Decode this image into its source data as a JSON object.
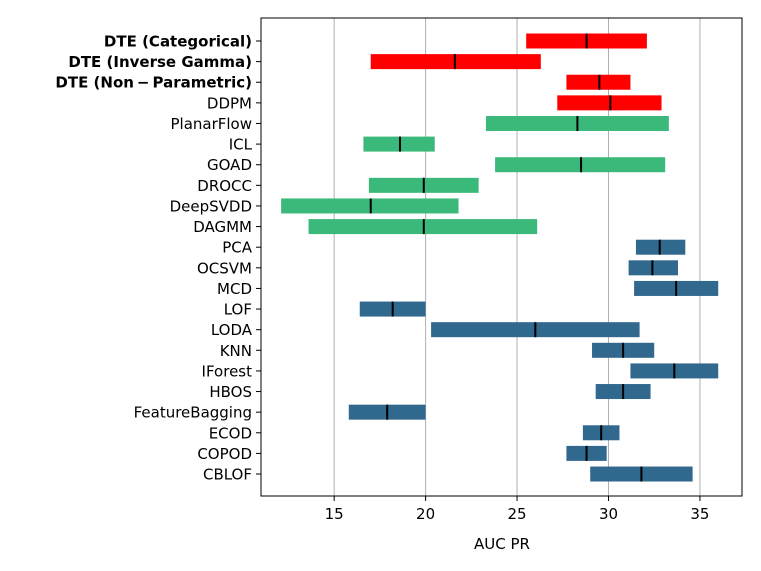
{
  "chart_data": {
    "type": "bar",
    "orientation": "horizontal",
    "title": "",
    "xlabel": "AUC PR",
    "ylabel": "",
    "xlim": [
      11.0,
      37.3
    ],
    "xticks": [
      15,
      20,
      25,
      30,
      35
    ],
    "xtick_labels": [
      "15",
      "20",
      "25",
      "30",
      "35"
    ],
    "grid": "vertical",
    "legend": "none",
    "group_colors": {
      "diffusion": "#ff0000",
      "deep": "#3bb97a",
      "classical": "#31688e"
    },
    "median_color": "#000000",
    "series": [
      {
        "name": "DTE (Categorical)",
        "bold": true,
        "group": "diffusion",
        "low": 25.5,
        "high": 32.1,
        "median": 28.8
      },
      {
        "name": "DTE (Inverse Gamma)",
        "bold": true,
        "group": "diffusion",
        "low": 17.0,
        "high": 26.3,
        "median": 21.6
      },
      {
        "name": "DTE (Non − Parametric)",
        "bold": true,
        "group": "diffusion",
        "low": 27.7,
        "high": 31.2,
        "median": 29.5
      },
      {
        "name": "DDPM",
        "bold": false,
        "group": "diffusion",
        "low": 27.2,
        "high": 32.9,
        "median": 30.1
      },
      {
        "name": "PlanarFlow",
        "bold": false,
        "group": "deep",
        "low": 23.3,
        "high": 33.3,
        "median": 28.3
      },
      {
        "name": "ICL",
        "bold": false,
        "group": "deep",
        "low": 16.6,
        "high": 20.5,
        "median": 18.6
      },
      {
        "name": "GOAD",
        "bold": false,
        "group": "deep",
        "low": 23.8,
        "high": 33.1,
        "median": 28.5
      },
      {
        "name": "DROCC",
        "bold": false,
        "group": "deep",
        "low": 16.9,
        "high": 22.9,
        "median": 19.9
      },
      {
        "name": "DeepSVDD",
        "bold": false,
        "group": "deep",
        "low": 12.1,
        "high": 21.8,
        "median": 17.0
      },
      {
        "name": "DAGMM",
        "bold": false,
        "group": "deep",
        "low": 13.6,
        "high": 26.1,
        "median": 19.9
      },
      {
        "name": "PCA",
        "bold": false,
        "group": "classical",
        "low": 31.5,
        "high": 34.2,
        "median": 32.8
      },
      {
        "name": "OCSVM",
        "bold": false,
        "group": "classical",
        "low": 31.1,
        "high": 33.8,
        "median": 32.4
      },
      {
        "name": "MCD",
        "bold": false,
        "group": "classical",
        "low": 31.4,
        "high": 36.0,
        "median": 33.7
      },
      {
        "name": "LOF",
        "bold": false,
        "group": "classical",
        "low": 16.4,
        "high": 20.0,
        "median": 18.2
      },
      {
        "name": "LODA",
        "bold": false,
        "group": "classical",
        "low": 20.3,
        "high": 31.7,
        "median": 26.0
      },
      {
        "name": "KNN",
        "bold": false,
        "group": "classical",
        "low": 29.1,
        "high": 32.5,
        "median": 30.8
      },
      {
        "name": "IForest",
        "bold": false,
        "group": "classical",
        "low": 31.2,
        "high": 36.0,
        "median": 33.6
      },
      {
        "name": "HBOS",
        "bold": false,
        "group": "classical",
        "low": 29.3,
        "high": 32.3,
        "median": 30.8
      },
      {
        "name": "FeatureBagging",
        "bold": false,
        "group": "classical",
        "low": 15.8,
        "high": 20.0,
        "median": 17.9
      },
      {
        "name": "ECOD",
        "bold": false,
        "group": "classical",
        "low": 28.6,
        "high": 30.6,
        "median": 29.6
      },
      {
        "name": "COPOD",
        "bold": false,
        "group": "classical",
        "low": 27.7,
        "high": 29.9,
        "median": 28.8
      },
      {
        "name": "CBLOF",
        "bold": false,
        "group": "classical",
        "low": 29.0,
        "high": 34.6,
        "median": 31.8
      }
    ]
  }
}
